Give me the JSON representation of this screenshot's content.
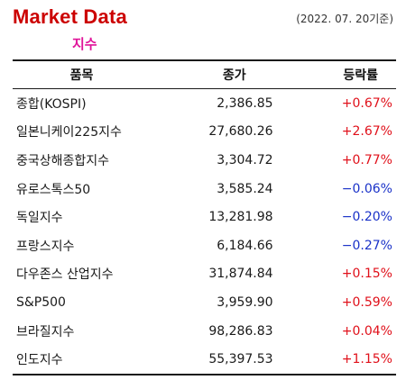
{
  "header": {
    "title": "Market Data",
    "date": "(2022. 07. 20기준)",
    "subtitle": "지수"
  },
  "table": {
    "columns": [
      "품목",
      "종가",
      "등락률"
    ],
    "rows": [
      {
        "name": "종합(KOSPI)",
        "close": "2,386.85",
        "change": "+0.67%",
        "dir": "pos"
      },
      {
        "name": "일본니케이225지수",
        "close": "27,680.26",
        "change": "+2.67%",
        "dir": "pos"
      },
      {
        "name": "중국상해종합지수",
        "close": "3,304.72",
        "change": "+0.77%",
        "dir": "pos"
      },
      {
        "name": "유로스톡스50",
        "close": "3,585.24",
        "change": "−0.06%",
        "dir": "neg"
      },
      {
        "name": "독일지수",
        "close": "13,281.98",
        "change": "−0.20%",
        "dir": "neg"
      },
      {
        "name": "프랑스지수",
        "close": "6,184.66",
        "change": "−0.27%",
        "dir": "neg"
      },
      {
        "name": "다우존스 산업지수",
        "close": "31,874.84",
        "change": "+0.15%",
        "dir": "pos"
      },
      {
        "name": "S&P500",
        "close": "3,959.90",
        "change": "+0.59%",
        "dir": "pos"
      },
      {
        "name": "브라질지수",
        "close": "98,286.83",
        "change": "+0.04%",
        "dir": "pos"
      },
      {
        "name": "인도지수",
        "close": "55,397.53",
        "change": "+1.15%",
        "dir": "pos"
      }
    ]
  },
  "colors": {
    "title": "#cc0000",
    "subtitle": "#e0149a",
    "positive": "#e0101a",
    "negative": "#1a32c8"
  }
}
